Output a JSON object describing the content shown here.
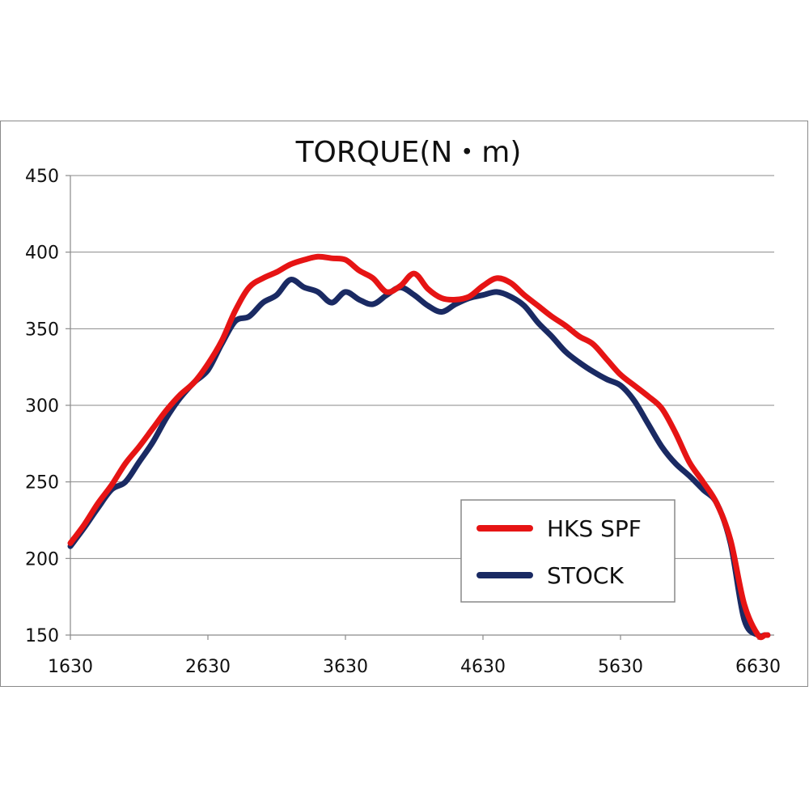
{
  "chart_data": {
    "type": "line",
    "title": "TORQUE(N・m)",
    "xlabel": "",
    "ylabel": "",
    "xlim": [
      1630,
      6720
    ],
    "ylim": [
      150,
      450
    ],
    "x_ticks": [
      1630,
      2630,
      3630,
      4630,
      5630,
      6630
    ],
    "y_ticks": [
      150,
      200,
      250,
      300,
      350,
      400,
      450
    ],
    "grid": "horizontal",
    "legend_position": "bottom-right",
    "series": [
      {
        "name": "HKS SPF",
        "color": "#e61414",
        "x": [
          1630,
          1730,
          1830,
          1930,
          2030,
          2130,
          2230,
          2330,
          2430,
          2530,
          2630,
          2730,
          2830,
          2930,
          3030,
          3130,
          3230,
          3330,
          3430,
          3530,
          3630,
          3730,
          3830,
          3930,
          4030,
          4130,
          4230,
          4330,
          4430,
          4530,
          4630,
          4730,
          4830,
          4930,
          5030,
          5130,
          5230,
          5330,
          5430,
          5530,
          5630,
          5730,
          5830,
          5930,
          6030,
          6130,
          6230,
          6330,
          6430,
          6530,
          6630,
          6680,
          6700
        ],
        "y": [
          210,
          222,
          236,
          248,
          262,
          273,
          285,
          297,
          307,
          315,
          327,
          342,
          362,
          377,
          383,
          387,
          392,
          395,
          397,
          396,
          395,
          388,
          383,
          374,
          378,
          386,
          376,
          370,
          369,
          371,
          378,
          383,
          380,
          372,
          365,
          358,
          352,
          345,
          340,
          330,
          320,
          313,
          306,
          298,
          282,
          263,
          250,
          236,
          212,
          170,
          150,
          150,
          150
        ]
      },
      {
        "name": "STOCK",
        "color": "#1a2a63",
        "x": [
          1630,
          1730,
          1830,
          1930,
          2030,
          2130,
          2230,
          2330,
          2430,
          2530,
          2630,
          2730,
          2830,
          2930,
          3030,
          3130,
          3230,
          3330,
          3430,
          3530,
          3630,
          3730,
          3830,
          3930,
          4030,
          4130,
          4230,
          4330,
          4430,
          4530,
          4630,
          4730,
          4830,
          4930,
          5030,
          5130,
          5230,
          5330,
          5430,
          5530,
          5630,
          5730,
          5830,
          5930,
          6030,
          6130,
          6230,
          6330,
          6430,
          6530,
          6630,
          6680,
          6700
        ],
        "y": [
          208,
          220,
          233,
          245,
          250,
          263,
          276,
          292,
          305,
          315,
          323,
          340,
          355,
          358,
          367,
          372,
          382,
          377,
          374,
          367,
          374,
          369,
          366,
          372,
          377,
          372,
          365,
          361,
          366,
          370,
          372,
          374,
          371,
          365,
          354,
          345,
          335,
          328,
          322,
          317,
          313,
          303,
          288,
          273,
          262,
          254,
          245,
          236,
          210,
          160,
          150,
          150,
          150
        ]
      }
    ]
  }
}
